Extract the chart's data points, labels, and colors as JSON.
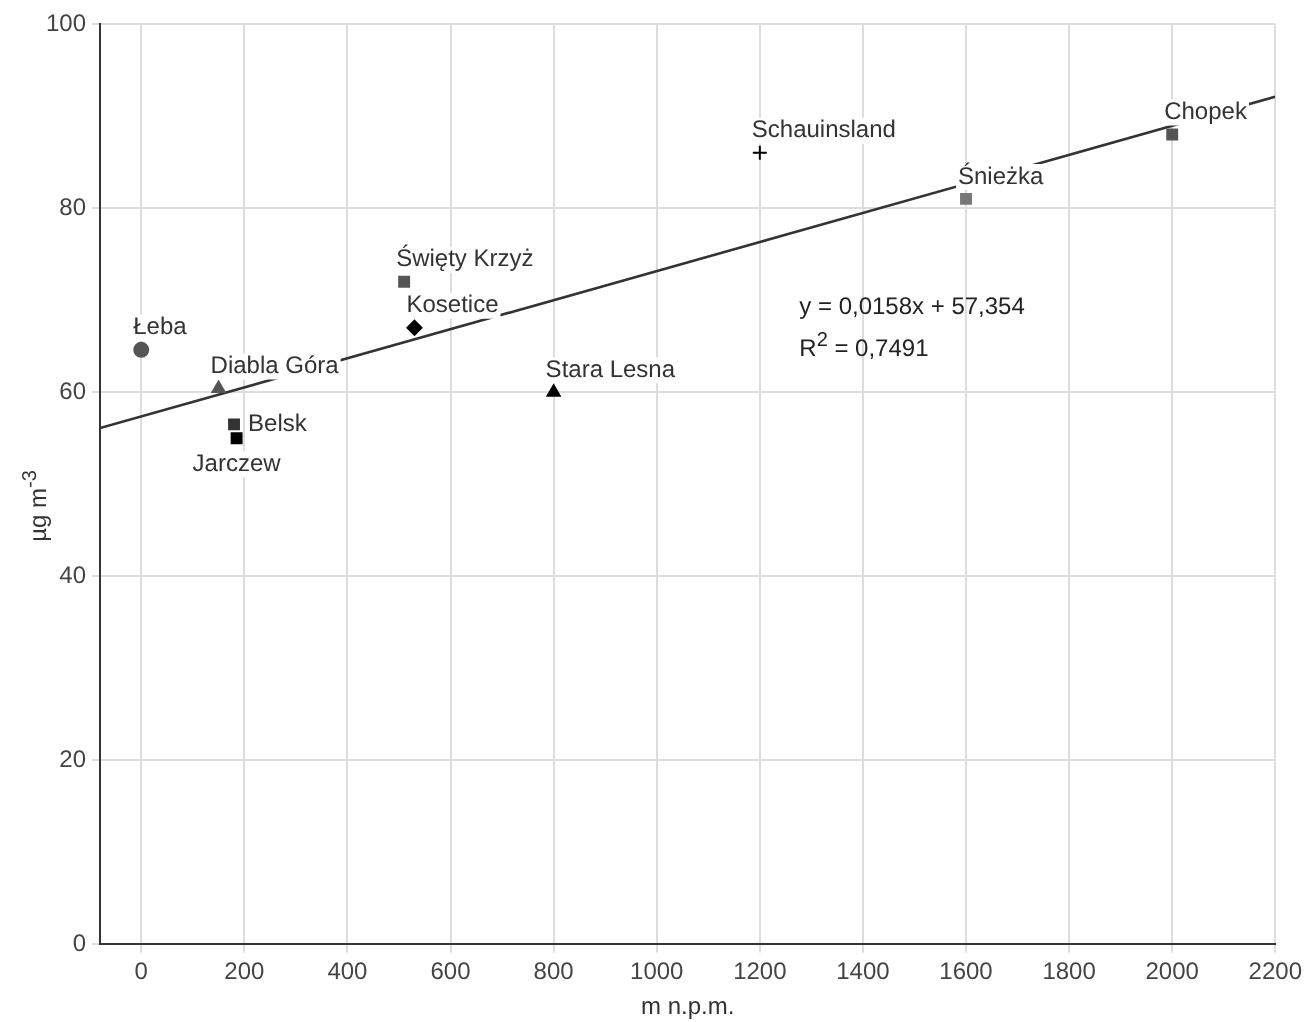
{
  "chart_data": {
    "type": "scatter",
    "xlabel": "m n.p.m.",
    "ylabel": "µg m$^{-3}$",
    "xlim": [
      -80,
      2200
    ],
    "xticks": [
      0,
      200,
      400,
      600,
      800,
      1000,
      1200,
      1400,
      1600,
      1800,
      2000,
      2200
    ],
    "ylim": [
      0,
      100
    ],
    "yticks": [
      0,
      20,
      40,
      60,
      80,
      100
    ],
    "grid": true,
    "legend": false,
    "series": [
      {
        "name": "Łeba",
        "color": "#555555",
        "marker": "circle",
        "x": [
          0
        ],
        "values": [
          64.6
        ]
      },
      {
        "name": "Diabla Góra",
        "color": "#555555",
        "marker": "triangle",
        "x": [
          150
        ],
        "values": [
          60.4
        ]
      },
      {
        "name": "Belsk",
        "color": "#333333",
        "marker": "square",
        "x": [
          180
        ],
        "values": [
          56.5
        ]
      },
      {
        "name": "Jarczew",
        "color": "#000000",
        "marker": "square",
        "x": [
          185
        ],
        "values": [
          55
        ]
      },
      {
        "name": "Kosetice",
        "color": "#000000",
        "marker": "diamond",
        "x": [
          530
        ],
        "values": [
          67
        ]
      },
      {
        "name": "Święty Krzyż",
        "color": "#555555",
        "marker": "square",
        "x": [
          510
        ],
        "values": [
          72
        ]
      },
      {
        "name": "Stara Lesna",
        "color": "#000000",
        "marker": "triangle",
        "x": [
          800
        ],
        "values": [
          60
        ]
      },
      {
        "name": "Schauinsland",
        "color": "#000000",
        "marker": "cross",
        "x": [
          1200
        ],
        "values": [
          86
        ]
      },
      {
        "name": "Śnieżka",
        "color": "#777777",
        "marker": "square",
        "x": [
          1600
        ],
        "values": [
          81
        ]
      },
      {
        "name": "Chopek",
        "color": "#555555",
        "marker": "square",
        "x": [
          2000
        ],
        "values": [
          88
        ]
      },
      {
        "type": "line",
        "color": "#333333",
        "marker": "none",
        "line_style": "solid",
        "x": [
          -80,
          2200
        ],
        "values": [
          56.1,
          92.1
        ]
      }
    ],
    "annotations": [
      "y = 0,0158x + 57,354",
      "R$^{2}$ = 0,7491"
    ]
  }
}
